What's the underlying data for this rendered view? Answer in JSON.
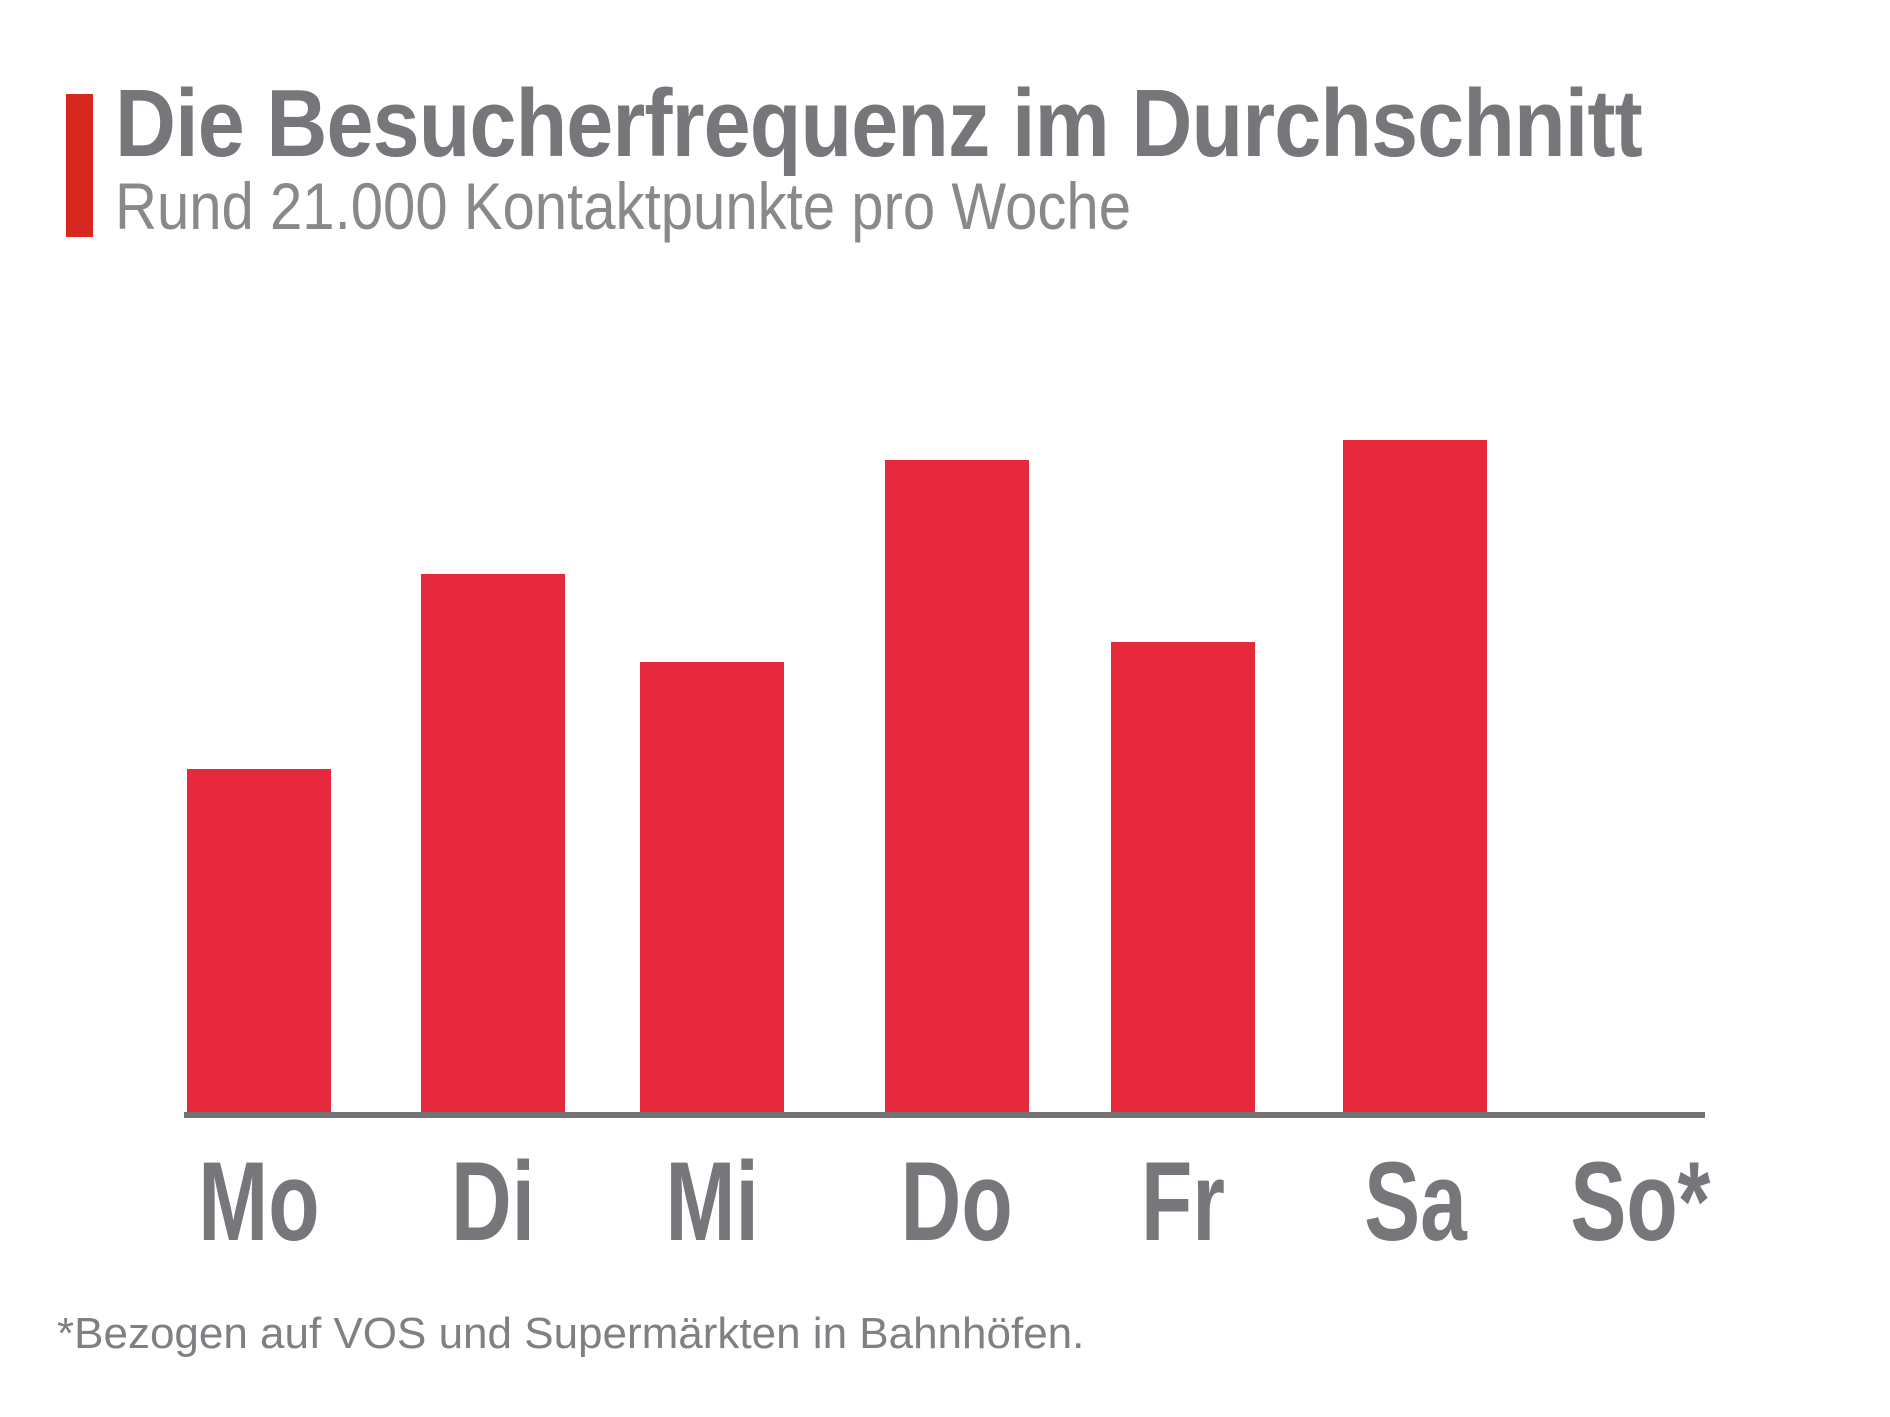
{
  "header": {
    "title": "Die Besucherfrequenz im Durchschnitt",
    "subtitle": "Rund 21.000 Kontaktpunkte pro Woche",
    "accent_color": "#D7281F"
  },
  "chart_data": {
    "type": "bar",
    "title": "Die Besucherfrequenz im Durchschnitt",
    "subtitle": "Rund 21.000 Kontaktpunkte pro Woche",
    "categories": [
      "Mo",
      "Di",
      "Mi",
      "Do",
      "Fr",
      "Sa",
      "So*"
    ],
    "values": [
      51,
      80,
      67,
      97,
      70,
      100,
      0
    ],
    "xlabel": "",
    "ylabel": "",
    "ylim": [
      0,
      100
    ],
    "note": "No numeric y-axis is shown; values are relative bar heights with the busiest day (Sa) = 100. So* has no bar (value 0).",
    "grid": false,
    "legend": false,
    "bar_color": "#E6293D",
    "axis_line_color": "#737373",
    "label_color": "#76777A"
  },
  "footnote": {
    "text": "*Bezogen auf VOS und Supermärkten in Bahnhöfen."
  }
}
